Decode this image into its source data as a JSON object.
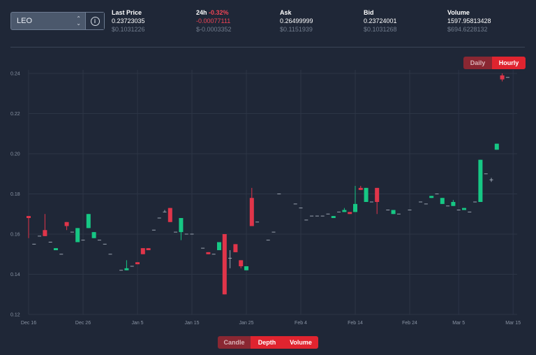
{
  "pair_select": {
    "value": "LEO"
  },
  "stats": [
    {
      "label": "Last Price",
      "value": "0.23723035",
      "sub": "$0.1031226"
    },
    {
      "label": "24h",
      "change": "-0.32%",
      "value": "-0.00077111",
      "sub": "$-0.0003352"
    },
    {
      "label": "Ask",
      "value": "0.26499999",
      "sub": "$0.1151939"
    },
    {
      "label": "Bid",
      "value": "0.23724001",
      "sub": "$0.1031268"
    },
    {
      "label": "Volume",
      "value": "1597.95813428",
      "sub": "$694.6228132"
    }
  ],
  "range_toggle": {
    "daily": "Daily",
    "hourly": "Hourly",
    "active": "Hourly"
  },
  "view_toggle": {
    "candle": "Candle",
    "depth": "Depth",
    "volume": "Volume",
    "active": "Candle"
  },
  "colors": {
    "up": "#16c784",
    "down": "#e0354a",
    "accent": "#e0242f",
    "background": "#1f2737"
  },
  "chart_data": {
    "type": "candlestick",
    "x_ticks": [
      "Dec 16",
      "Dec 26",
      "Jan 5",
      "Jan 15",
      "Jan 25",
      "Feb 4",
      "Feb 14",
      "Feb 24",
      "Mar 5",
      "Mar 15"
    ],
    "y_ticks": [
      "0.12",
      "0.14",
      "0.16",
      "0.18",
      "0.20",
      "0.22",
      "0.24"
    ],
    "ylim": [
      0.12,
      0.24
    ],
    "grid": true,
    "candles": [
      {
        "d": "Dec 16",
        "o": 0.169,
        "h": 0.169,
        "l": 0.158,
        "c": 0.168
      },
      {
        "d": "Dec 17",
        "o": 0.155,
        "h": 0.155,
        "l": 0.155,
        "c": 0.155
      },
      {
        "d": "Dec 18",
        "o": 0.159,
        "h": 0.159,
        "l": 0.159,
        "c": 0.159
      },
      {
        "d": "Dec 19",
        "o": 0.162,
        "h": 0.17,
        "l": 0.159,
        "c": 0.159
      },
      {
        "d": "Dec 20",
        "o": 0.156,
        "h": 0.156,
        "l": 0.156,
        "c": 0.156
      },
      {
        "d": "Dec 21",
        "o": 0.152,
        "h": 0.153,
        "l": 0.152,
        "c": 0.153
      },
      {
        "d": "Dec 22",
        "o": 0.15,
        "h": 0.15,
        "l": 0.15,
        "c": 0.15
      },
      {
        "d": "Dec 23",
        "o": 0.166,
        "h": 0.166,
        "l": 0.162,
        "c": 0.164
      },
      {
        "d": "Dec 24",
        "o": 0.161,
        "h": 0.161,
        "l": 0.161,
        "c": 0.161
      },
      {
        "d": "Dec 25",
        "o": 0.156,
        "h": 0.163,
        "l": 0.156,
        "c": 0.163
      },
      {
        "d": "Dec 26",
        "o": 0.157,
        "h": 0.157,
        "l": 0.157,
        "c": 0.157
      },
      {
        "d": "Dec 27",
        "o": 0.163,
        "h": 0.17,
        "l": 0.163,
        "c": 0.17
      },
      {
        "d": "Dec 28",
        "o": 0.158,
        "h": 0.161,
        "l": 0.158,
        "c": 0.161
      },
      {
        "d": "Dec 29",
        "o": 0.157,
        "h": 0.157,
        "l": 0.157,
        "c": 0.157
      },
      {
        "d": "Dec 30",
        "o": 0.155,
        "h": 0.155,
        "l": 0.155,
        "c": 0.155
      },
      {
        "d": "Dec 31",
        "o": 0.15,
        "h": 0.15,
        "l": 0.15,
        "c": 0.15
      },
      {
        "d": "Jan 2",
        "o": 0.142,
        "h": 0.142,
        "l": 0.142,
        "c": 0.142
      },
      {
        "d": "Jan 3",
        "o": 0.142,
        "h": 0.147,
        "l": 0.142,
        "c": 0.143
      },
      {
        "d": "Jan 4",
        "o": 0.144,
        "h": 0.144,
        "l": 0.144,
        "c": 0.144
      },
      {
        "d": "Jan 5",
        "o": 0.146,
        "h": 0.146,
        "l": 0.145,
        "c": 0.145
      },
      {
        "d": "Jan 6",
        "o": 0.153,
        "h": 0.153,
        "l": 0.15,
        "c": 0.15
      },
      {
        "d": "Jan 7",
        "o": 0.153,
        "h": 0.153,
        "l": 0.152,
        "c": 0.152
      },
      {
        "d": "Jan 8",
        "o": 0.162,
        "h": 0.162,
        "l": 0.162,
        "c": 0.162
      },
      {
        "d": "Jan 9",
        "o": 0.168,
        "h": 0.168,
        "l": 0.168,
        "c": 0.168
      },
      {
        "d": "Jan 10",
        "o": 0.171,
        "h": 0.172,
        "l": 0.171,
        "c": 0.171
      },
      {
        "d": "Jan 11",
        "o": 0.173,
        "h": 0.173,
        "l": 0.166,
        "c": 0.166
      },
      {
        "d": "Jan 12",
        "o": 0.161,
        "h": 0.161,
        "l": 0.161,
        "c": 0.161
      },
      {
        "d": "Jan 13",
        "o": 0.161,
        "h": 0.168,
        "l": 0.157,
        "c": 0.168
      },
      {
        "d": "Jan 14",
        "o": 0.16,
        "h": 0.16,
        "l": 0.16,
        "c": 0.16
      },
      {
        "d": "Jan 15",
        "o": 0.16,
        "h": 0.16,
        "l": 0.16,
        "c": 0.16
      },
      {
        "d": "Jan 17",
        "o": 0.153,
        "h": 0.153,
        "l": 0.153,
        "c": 0.153
      },
      {
        "d": "Jan 18",
        "o": 0.151,
        "h": 0.151,
        "l": 0.15,
        "c": 0.15
      },
      {
        "d": "Jan 19",
        "o": 0.15,
        "h": 0.15,
        "l": 0.15,
        "c": 0.15
      },
      {
        "d": "Jan 20",
        "o": 0.152,
        "h": 0.156,
        "l": 0.152,
        "c": 0.156
      },
      {
        "d": "Jan 21",
        "o": 0.16,
        "h": 0.16,
        "l": 0.13,
        "c": 0.13
      },
      {
        "d": "Jan 22",
        "o": 0.148,
        "h": 0.152,
        "l": 0.143,
        "c": 0.148
      },
      {
        "d": "Jan 23",
        "o": 0.155,
        "h": 0.155,
        "l": 0.151,
        "c": 0.151
      },
      {
        "d": "Jan 24",
        "o": 0.147,
        "h": 0.147,
        "l": 0.143,
        "c": 0.144
      },
      {
        "d": "Jan 25",
        "o": 0.142,
        "h": 0.144,
        "l": 0.142,
        "c": 0.144
      },
      {
        "d": "Jan 26",
        "o": 0.178,
        "h": 0.183,
        "l": 0.164,
        "c": 0.164
      },
      {
        "d": "Jan 27",
        "o": 0.166,
        "h": 0.166,
        "l": 0.166,
        "c": 0.166
      },
      {
        "d": "Jan 29",
        "o": 0.157,
        "h": 0.157,
        "l": 0.157,
        "c": 0.157
      },
      {
        "d": "Jan 30",
        "o": 0.161,
        "h": 0.161,
        "l": 0.161,
        "c": 0.161
      },
      {
        "d": "Jan 31",
        "o": 0.18,
        "h": 0.18,
        "l": 0.18,
        "c": 0.18
      },
      {
        "d": "Feb 3",
        "o": 0.175,
        "h": 0.175,
        "l": 0.175,
        "c": 0.175
      },
      {
        "d": "Feb 4",
        "o": 0.173,
        "h": 0.173,
        "l": 0.173,
        "c": 0.173
      },
      {
        "d": "Feb 5",
        "o": 0.167,
        "h": 0.167,
        "l": 0.167,
        "c": 0.167
      },
      {
        "d": "Feb 6",
        "o": 0.169,
        "h": 0.169,
        "l": 0.169,
        "c": 0.169
      },
      {
        "d": "Feb 7",
        "o": 0.169,
        "h": 0.169,
        "l": 0.169,
        "c": 0.169
      },
      {
        "d": "Feb 8",
        "o": 0.169,
        "h": 0.169,
        "l": 0.169,
        "c": 0.169
      },
      {
        "d": "Feb 9",
        "o": 0.17,
        "h": 0.17,
        "l": 0.17,
        "c": 0.17
      },
      {
        "d": "Feb 10",
        "o": 0.168,
        "h": 0.169,
        "l": 0.168,
        "c": 0.169
      },
      {
        "d": "Feb 11",
        "o": 0.171,
        "h": 0.171,
        "l": 0.171,
        "c": 0.171
      },
      {
        "d": "Feb 12",
        "o": 0.171,
        "h": 0.173,
        "l": 0.171,
        "c": 0.172
      },
      {
        "d": "Feb 13",
        "o": 0.171,
        "h": 0.171,
        "l": 0.17,
        "c": 0.17
      },
      {
        "d": "Feb 14",
        "o": 0.171,
        "h": 0.184,
        "l": 0.171,
        "c": 0.175
      },
      {
        "d": "Feb 15",
        "o": 0.183,
        "h": 0.184,
        "l": 0.182,
        "c": 0.182
      },
      {
        "d": "Feb 16",
        "o": 0.176,
        "h": 0.183,
        "l": 0.176,
        "c": 0.183
      },
      {
        "d": "Feb 17",
        "o": 0.176,
        "h": 0.176,
        "l": 0.176,
        "c": 0.176
      },
      {
        "d": "Feb 18",
        "o": 0.183,
        "h": 0.183,
        "l": 0.17,
        "c": 0.176
      },
      {
        "d": "Feb 20",
        "o": 0.172,
        "h": 0.172,
        "l": 0.172,
        "c": 0.172
      },
      {
        "d": "Feb 21",
        "o": 0.17,
        "h": 0.172,
        "l": 0.17,
        "c": 0.172
      },
      {
        "d": "Feb 22",
        "o": 0.17,
        "h": 0.17,
        "l": 0.17,
        "c": 0.17
      },
      {
        "d": "Feb 24",
        "o": 0.172,
        "h": 0.172,
        "l": 0.172,
        "c": 0.172
      },
      {
        "d": "Feb 26",
        "o": 0.176,
        "h": 0.176,
        "l": 0.176,
        "c": 0.176
      },
      {
        "d": "Feb 27",
        "o": 0.175,
        "h": 0.175,
        "l": 0.175,
        "c": 0.175
      },
      {
        "d": "Feb 28",
        "o": 0.178,
        "h": 0.179,
        "l": 0.178,
        "c": 0.179
      },
      {
        "d": "Mar 1",
        "o": 0.18,
        "h": 0.18,
        "l": 0.18,
        "c": 0.18
      },
      {
        "d": "Mar 2",
        "o": 0.175,
        "h": 0.178,
        "l": 0.175,
        "c": 0.178
      },
      {
        "d": "Mar 3",
        "o": 0.174,
        "h": 0.174,
        "l": 0.174,
        "c": 0.174
      },
      {
        "d": "Mar 4",
        "o": 0.174,
        "h": 0.177,
        "l": 0.174,
        "c": 0.176
      },
      {
        "d": "Mar 5",
        "o": 0.172,
        "h": 0.172,
        "l": 0.172,
        "c": 0.172
      },
      {
        "d": "Mar 6",
        "o": 0.172,
        "h": 0.173,
        "l": 0.172,
        "c": 0.173
      },
      {
        "d": "Mar 7",
        "o": 0.171,
        "h": 0.171,
        "l": 0.171,
        "c": 0.171
      },
      {
        "d": "Mar 8",
        "o": 0.176,
        "h": 0.176,
        "l": 0.176,
        "c": 0.176
      },
      {
        "d": "Mar 9",
        "o": 0.176,
        "h": 0.197,
        "l": 0.176,
        "c": 0.197
      },
      {
        "d": "Mar 10",
        "o": 0.19,
        "h": 0.19,
        "l": 0.19,
        "c": 0.19
      },
      {
        "d": "Mar 11",
        "o": 0.187,
        "h": 0.188,
        "l": 0.186,
        "c": 0.187
      },
      {
        "d": "Mar 12",
        "o": 0.202,
        "h": 0.205,
        "l": 0.202,
        "c": 0.205
      },
      {
        "d": "Mar 13",
        "o": 0.239,
        "h": 0.24,
        "l": 0.236,
        "c": 0.237
      },
      {
        "d": "Mar 14",
        "o": 0.238,
        "h": 0.238,
        "l": 0.238,
        "c": 0.238
      }
    ]
  }
}
